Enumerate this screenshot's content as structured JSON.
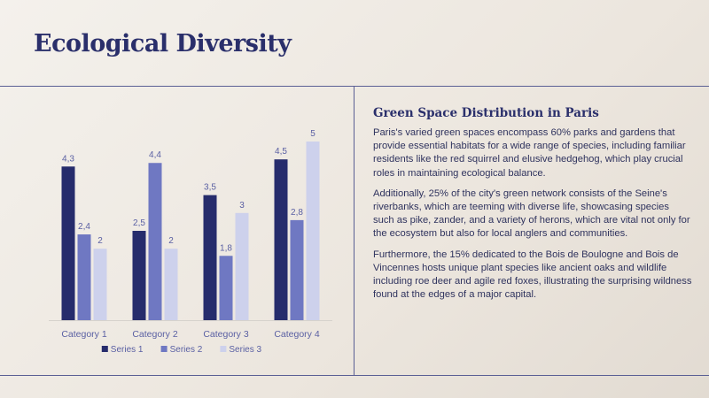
{
  "slide": {
    "title": "Ecological Diversity"
  },
  "panel": {
    "heading": "Green Space Distribution in Paris",
    "paragraphs": [
      "Paris's varied green spaces encompass 60% parks and gardens that provide essential habitats for a wide range of species, including familiar residents like the red squirrel and elusive hedgehog, which play crucial roles in maintaining ecological balance.",
      "Additionally, 25% of the city's green network consists of the Seine's riverbanks, which are teeming with diverse life, showcasing species such as pike, zander, and a variety of herons, which are vital not only for the ecosystem but also for local anglers and communities.",
      "Furthermore, the 15% dedicated to the Bois de Boulogne and Bois de Vincennes hosts unique plant species like ancient oaks and wildlife including roe deer and agile red foxes, illustrating the surprising wildness found at the edges of a major capital."
    ]
  },
  "chart_data": {
    "type": "bar",
    "title": "",
    "xlabel": "",
    "ylabel": "",
    "categories": [
      "Category 1",
      "Category 2",
      "Category 3",
      "Category 4"
    ],
    "series": [
      {
        "name": "Series 1",
        "values": [
          4.3,
          2.5,
          3.5,
          4.5
        ],
        "labels": [
          "4,3",
          "2,5",
          "3,5",
          "4,5"
        ],
        "color": "#262c6c"
      },
      {
        "name": "Series 2",
        "values": [
          2.4,
          4.4,
          1.8,
          2.8
        ],
        "labels": [
          "2,4",
          "4,4",
          "1,8",
          "2,8"
        ],
        "color": "#6f78c2"
      },
      {
        "name": "Series 3",
        "values": [
          2,
          2,
          3,
          5
        ],
        "labels": [
          "2",
          "2",
          "3",
          "5"
        ],
        "color": "#cdd1ec"
      }
    ],
    "ylim": [
      0,
      5
    ],
    "grid": false,
    "legend": "bottom"
  }
}
